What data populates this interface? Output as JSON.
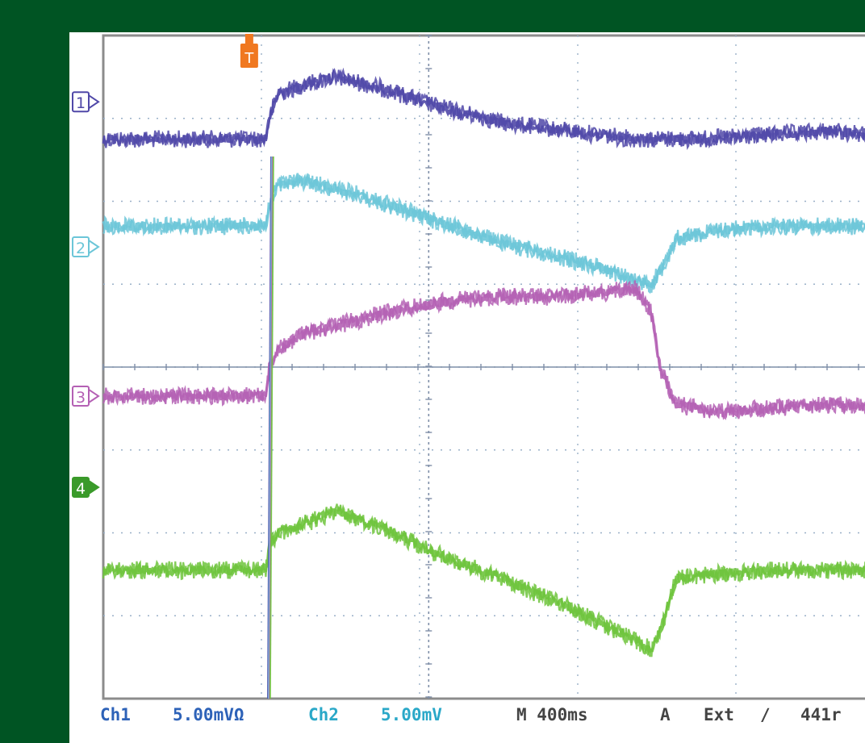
{
  "chart_data": {
    "type": "line",
    "title": "",
    "xlabel": "",
    "ylabel": "",
    "xlim": [
      0,
      4.76
    ],
    "ylim": [
      -4.0,
      4.0
    ],
    "grid": true,
    "trigger_marker": "T",
    "colors": {
      "ch1": "#5048a8",
      "ch2": "#6cc6d8",
      "ch3": "#b460b4",
      "ch4": "#6ec43c",
      "grid": "#9ab0c8",
      "frame": "#8c8c8c",
      "trigger": "#f07820"
    },
    "series": [
      {
        "channel": "1",
        "x": [
          0.0,
          0.9,
          0.98,
          1.0,
          1.05,
          1.2,
          1.4,
          1.7,
          2.0,
          2.4,
          2.8,
          3.2,
          3.6,
          4.0,
          4.4,
          4.76
        ],
        "values": [
          2.75,
          2.75,
          2.76,
          3.0,
          3.3,
          3.4,
          3.5,
          3.35,
          3.15,
          2.95,
          2.85,
          2.75,
          2.75,
          2.8,
          2.85,
          2.75
        ]
      },
      {
        "channel": "2",
        "x": [
          0.0,
          0.9,
          0.98,
          1.0,
          1.05,
          1.2,
          1.5,
          1.8,
          2.1,
          2.4,
          2.7,
          3.0,
          3.2,
          3.3,
          3.35,
          3.45,
          3.7,
          4.0,
          4.4,
          4.76
        ],
        "values": [
          1.7,
          1.7,
          1.71,
          1.95,
          2.2,
          2.25,
          2.1,
          1.9,
          1.7,
          1.5,
          1.35,
          1.2,
          1.05,
          1.0,
          1.15,
          1.55,
          1.65,
          1.7,
          1.7,
          1.7
        ]
      },
      {
        "channel": "3",
        "x": [
          0.0,
          0.9,
          0.98,
          1.0,
          1.05,
          1.2,
          1.5,
          1.8,
          2.1,
          2.4,
          2.7,
          3.0,
          3.2,
          3.3,
          3.35,
          3.45,
          3.7,
          4.0,
          4.4,
          4.76
        ],
        "values": [
          -0.35,
          -0.35,
          -0.34,
          0.0,
          0.2,
          0.4,
          0.55,
          0.7,
          0.8,
          0.85,
          0.85,
          0.9,
          0.95,
          0.65,
          0.0,
          -0.45,
          -0.55,
          -0.5,
          -0.45,
          -0.5
        ],
        "note": ""
      },
      {
        "channel": "4",
        "x": [
          0.0,
          0.9,
          0.98,
          1.0,
          1.05,
          1.2,
          1.4,
          1.7,
          2.0,
          2.4,
          2.8,
          3.1,
          3.3,
          3.35,
          3.45,
          3.7,
          4.0,
          4.4,
          4.76
        ],
        "values": [
          -2.45,
          -2.45,
          -2.44,
          -2.15,
          -2.0,
          -1.9,
          -1.75,
          -1.95,
          -2.25,
          -2.55,
          -2.9,
          -3.2,
          -3.4,
          -3.2,
          -2.55,
          -2.5,
          -2.45,
          -2.45,
          -2.45
        ]
      }
    ],
    "step": {
      "x_rise": 1.0,
      "values": [
        -4.0,
        4.0
      ]
    },
    "channel_labels": [
      "1",
      "2",
      "3",
      "4"
    ],
    "channel_marker_levels": [
      3.2,
      1.45,
      -0.35,
      -1.45
    ]
  },
  "readout": {
    "ch1_name": "Ch1",
    "ch1_scale": "5.00mVΩ",
    "ch2_name": "Ch2",
    "ch2_scale": "5.00mV",
    "timebase": "M 400ms",
    "trig_mode": "A",
    "trig_source": "Ext",
    "trig_slope": "∕",
    "trig_level": "441r"
  }
}
